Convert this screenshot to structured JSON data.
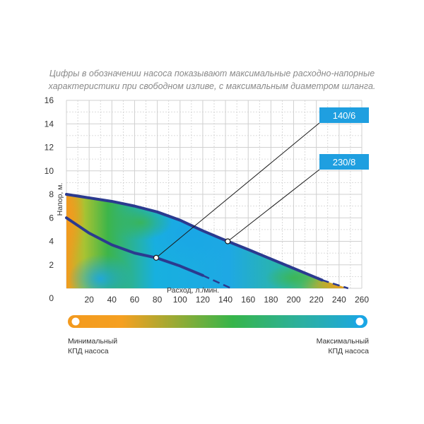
{
  "caption": {
    "line1": "Цифры в обозначении насоса показывают максимальные расходно-напорные",
    "line2": "характеристики при свободном изливе, с максимальным диаметром шланга."
  },
  "chart_data": {
    "type": "line",
    "xlabel": "Расход, л./мин.",
    "ylabel": "Напор, м.",
    "xlim": [
      0,
      260
    ],
    "ylim": [
      0,
      16
    ],
    "x_ticks": [
      "20",
      "40",
      "60",
      "80",
      "100",
      "120",
      "140",
      "160",
      "180",
      "200",
      "220",
      "240",
      "260"
    ],
    "y_ticks": [
      "0",
      "2",
      "4",
      "6",
      "8",
      "10",
      "12",
      "14",
      "16"
    ],
    "grid": true,
    "series": [
      {
        "name": "140/6",
        "x": [
          0,
          20,
          40,
          60,
          79,
          100,
          120
        ],
        "y": [
          6.0,
          4.7,
          3.7,
          3.0,
          2.6,
          1.9,
          1.1
        ],
        "dashed_extension": {
          "x": [
            120,
            145
          ],
          "y": [
            1.1,
            0
          ]
        }
      },
      {
        "name": "230/8",
        "x": [
          0,
          20,
          40,
          60,
          80,
          100,
          120,
          142,
          160,
          180,
          200,
          220,
          225
        ],
        "y": [
          8.0,
          7.7,
          7.4,
          7.0,
          6.5,
          5.8,
          4.9,
          4.0,
          3.3,
          2.5,
          1.7,
          0.9,
          0.7
        ],
        "dashed_extension": {
          "x": [
            225,
            248
          ],
          "y": [
            0.7,
            0
          ]
        }
      }
    ],
    "callouts": [
      {
        "label": "140/6",
        "point": {
          "x": 79,
          "y": 2.6
        }
      },
      {
        "label": "230/8",
        "point": {
          "x": 142,
          "y": 4.0
        }
      }
    ]
  },
  "legend": {
    "min_line1": "Минимальный",
    "min_line2": "КПД насоса",
    "max_line1": "Максимальный",
    "max_line2": "КПД насоса",
    "color_min": "#f39a1e",
    "color_mid": "#2fb24a",
    "color_max": "#1aa6e6"
  },
  "colors": {
    "curve": "#2b3a8f",
    "callout_box": "#1f9fe0",
    "grid": "#d0d0d0"
  }
}
